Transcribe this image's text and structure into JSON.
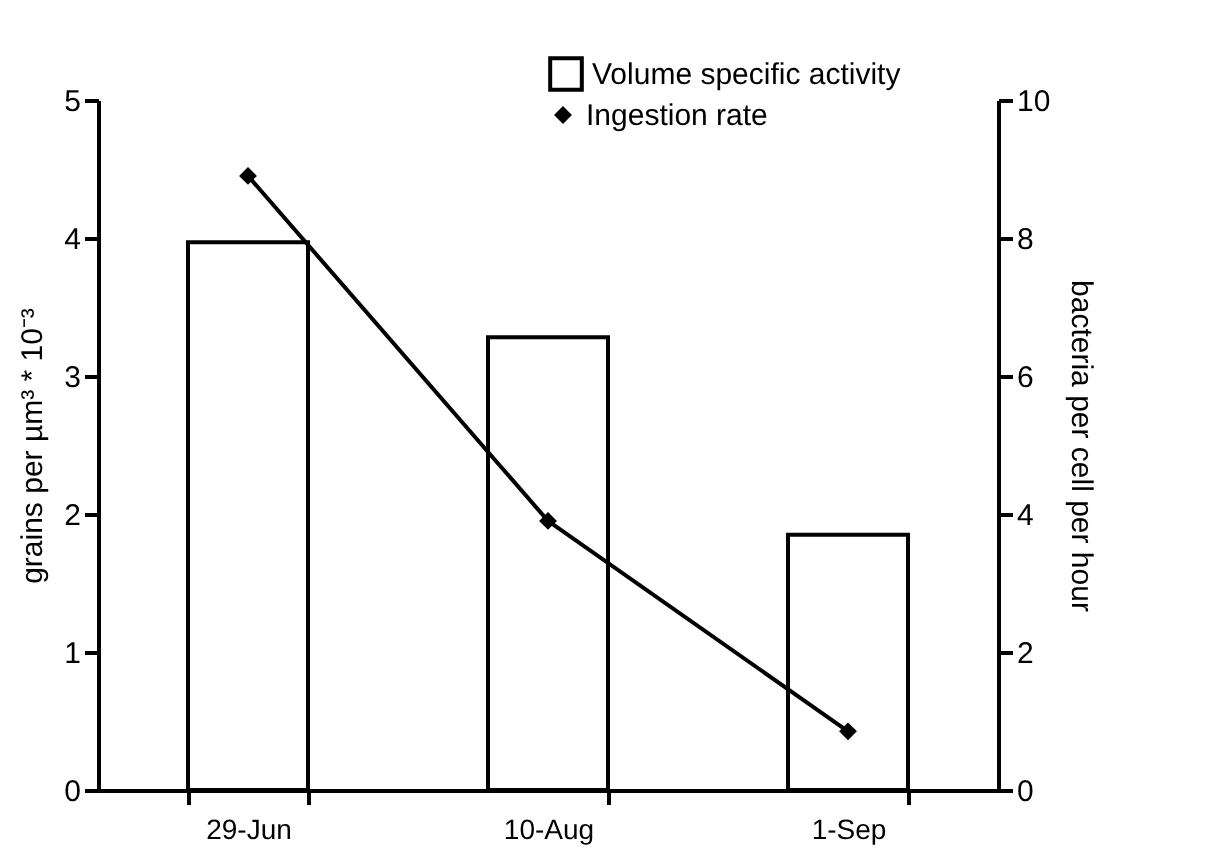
{
  "chart_data": {
    "type": "bar",
    "categories": [
      "29-Jun",
      "10-Aug",
      "1-Sep"
    ],
    "series": [
      {
        "name": "Volume specific activity",
        "color": "#ffffff",
        "values": [
          3.97,
          3.28,
          1.85
        ]
      },
      {
        "name": "Ingestion rate",
        "type": "line",
        "axis": "y2",
        "color": "#000000",
        "marker": "diamond",
        "values": [
          8.9,
          3.9,
          0.85
        ]
      }
    ],
    "ylabel": "grains per µm³ * 10⁻³",
    "y2label": "bacteria per cell per hour",
    "ylim": [
      0,
      5
    ],
    "yticks": [
      0,
      1,
      2,
      3,
      4,
      5
    ],
    "y2lim": [
      0,
      10
    ],
    "y2ticks": [
      0,
      2,
      4,
      6,
      8,
      10
    ],
    "legend": "top right",
    "grid": false
  }
}
